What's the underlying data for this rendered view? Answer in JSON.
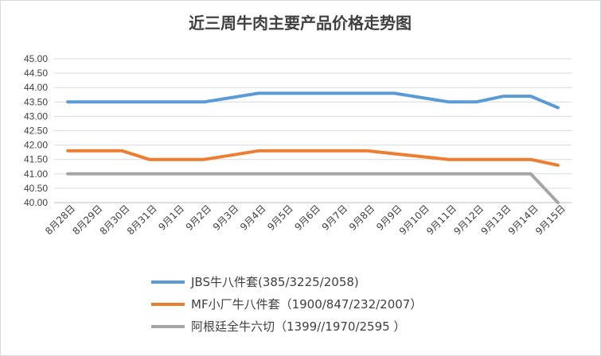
{
  "chart_data": {
    "type": "line",
    "title": "近三周牛肉主要产品价格走势图",
    "xlabel": "",
    "ylabel": "",
    "ylim": [
      40.0,
      45.0
    ],
    "yticks": [
      "40.00",
      "40.50",
      "41.00",
      "41.50",
      "42.00",
      "42.50",
      "43.00",
      "43.50",
      "44.00",
      "44.50",
      "45.00"
    ],
    "grid": true,
    "legend_position": "bottom",
    "categories": [
      "8月28日",
      "8月29日",
      "8月30日",
      "8月31日",
      "9月1日",
      "9月2日",
      "9月3日",
      "9月4日",
      "9月5日",
      "9月6日",
      "9月7日",
      "9月8日",
      "9月9日",
      "9月10日",
      "9月11日",
      "9月12日",
      "9月13日",
      "9月14日",
      "9月15日"
    ],
    "series": [
      {
        "name": "JBS牛八件套(385/3225/2058)",
        "color": "#5b9bd5",
        "values": [
          43.5,
          43.5,
          43.5,
          43.5,
          43.5,
          43.5,
          43.65,
          43.8,
          43.8,
          43.8,
          43.8,
          43.8,
          43.8,
          43.65,
          43.5,
          43.5,
          43.7,
          43.7,
          43.3
        ]
      },
      {
        "name": "MF小厂牛八件套（1900/847/232/2007）",
        "color": "#ed7d31",
        "values": [
          41.8,
          41.8,
          41.8,
          41.5,
          41.5,
          41.5,
          41.65,
          41.8,
          41.8,
          41.8,
          41.8,
          41.8,
          41.7,
          41.6,
          41.5,
          41.5,
          41.5,
          41.5,
          41.3
        ]
      },
      {
        "name": "阿根廷全牛六切（1399//1970/2595 ）",
        "color": "#a5a5a5",
        "values": [
          41.0,
          41.0,
          41.0,
          41.0,
          41.0,
          41.0,
          41.0,
          41.0,
          41.0,
          41.0,
          41.0,
          41.0,
          41.0,
          41.0,
          41.0,
          41.0,
          41.0,
          41.0,
          40.0
        ]
      }
    ]
  }
}
